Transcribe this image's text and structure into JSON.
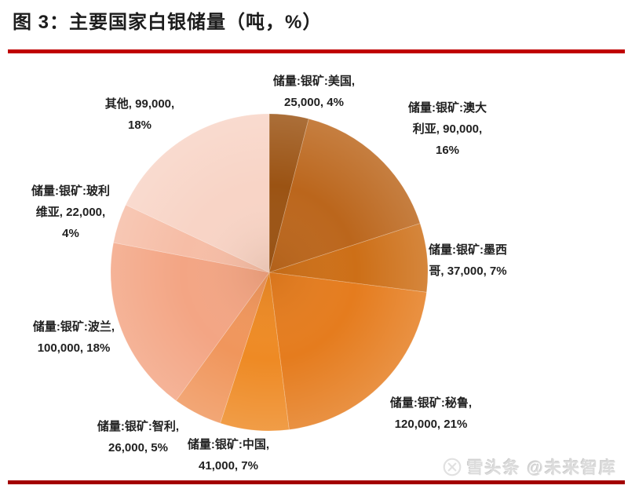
{
  "title": "图 3：主要国家白银储量（吨，%）",
  "rules": {
    "top_color": "#c00000",
    "bottom_color": "#a30000"
  },
  "watermark": {
    "text": "雪头条 @未来智库",
    "icon": "x-circle-logo",
    "color": "#dcdcdc"
  },
  "chart_data": {
    "type": "pie",
    "title": "主要国家白银储量",
    "unit": "吨",
    "start_angle_deg": 0,
    "direction": "clockwise",
    "total_value": 560000,
    "legend_position": "none",
    "labels_outside": true,
    "slices": [
      {
        "id": "usa",
        "name": "美国",
        "value": 25000,
        "pct": 4,
        "color": "#9b5313",
        "label": "储量:银矿:美国,\n25,000, 4%"
      },
      {
        "id": "australia",
        "name": "澳大利亚",
        "value": 90000,
        "pct": 16,
        "color": "#bb661c",
        "label": "储量:银矿:澳大\n利亚, 90,000,\n16%"
      },
      {
        "id": "mexico",
        "name": "墨西哥",
        "value": 37000,
        "pct": 7,
        "color": "#cd6f17",
        "label": "储量:银矿:墨西\n哥, 37,000, 7%"
      },
      {
        "id": "peru",
        "name": "秘鲁",
        "value": 120000,
        "pct": 21,
        "color": "#e57c1e",
        "label": "储量:银矿:秘鲁,\n120,000, 21%"
      },
      {
        "id": "china",
        "name": "中国",
        "value": 41000,
        "pct": 7,
        "color": "#ee8a24",
        "label": "储量:银矿:中国,\n41,000, 7%"
      },
      {
        "id": "chile",
        "name": "智利",
        "value": 26000,
        "pct": 5,
        "color": "#f0965c",
        "label": "储量:银矿:智利,\n26,000, 5%"
      },
      {
        "id": "poland",
        "name": "波兰",
        "value": 100000,
        "pct": 18,
        "color": "#f3a584",
        "label": "储量:银矿:波兰,\n100,000, 18%"
      },
      {
        "id": "bolivia",
        "name": "玻利维亚",
        "value": 22000,
        "pct": 4,
        "color": "#f6bda6",
        "label": "储量:银矿:玻利\n维亚, 22,000,\n4%"
      },
      {
        "id": "others",
        "name": "其他",
        "value": 99000,
        "pct": 18,
        "color": "#f8d4c6",
        "label": "其他, 99,000,\n18%"
      }
    ]
  }
}
